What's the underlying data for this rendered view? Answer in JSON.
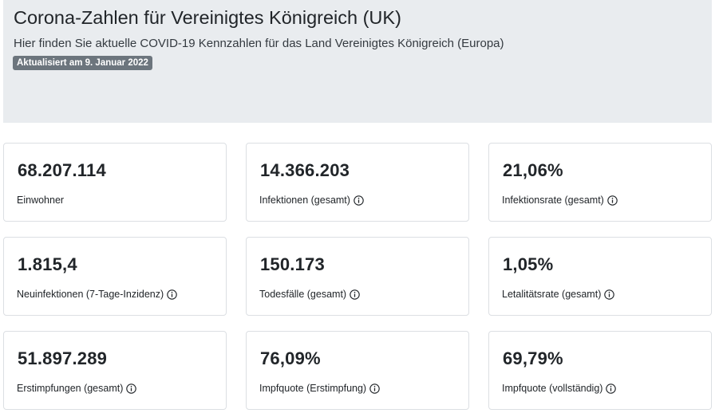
{
  "header": {
    "title": "Corona-Zahlen für Vereinigtes Königreich (UK)",
    "lead": "Hier finden Sie aktuelle COVID-19 Kennzahlen für das Land Vereinigtes Königreich (Europa)",
    "updated_badge": "Aktualisiert am 9. Januar 2022"
  },
  "cards": [
    {
      "value": "68.207.114",
      "label": "Einwohner",
      "info": false
    },
    {
      "value": "14.366.203",
      "label": "Infektionen (gesamt)",
      "info": true
    },
    {
      "value": "21,06%",
      "label": "Infektionsrate (gesamt)",
      "info": true
    },
    {
      "value": "1.815,4",
      "label": "Neuinfektionen (7-Tage-Inzidenz)",
      "info": true
    },
    {
      "value": "150.173",
      "label": "Todesfälle (gesamt)",
      "info": true
    },
    {
      "value": "1,05%",
      "label": "Letalitätsrate (gesamt)",
      "info": true
    },
    {
      "value": "51.897.289",
      "label": "Erstimpfungen (gesamt)",
      "info": true
    },
    {
      "value": "76,09%",
      "label": "Impfquote (Erstimpfung)",
      "info": true
    },
    {
      "value": "69,79%",
      "label": "Impfquote (vollständig)",
      "info": true
    }
  ],
  "colors": {
    "jumbotron_bg": "#e9ecef",
    "badge_bg": "#6c757d",
    "card_border": "#dcdfe3"
  },
  "icons": {
    "info": "info-circle-icon"
  }
}
